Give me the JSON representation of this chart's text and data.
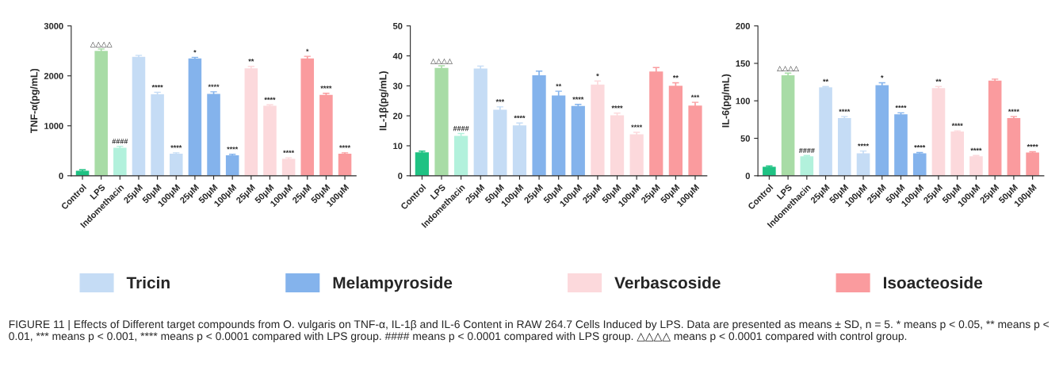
{
  "chart_data": [
    {
      "type": "bar",
      "ylabel": "TNF-α(pg/mL)",
      "categories": [
        "Control",
        "LPS",
        "Indomethacin",
        "25μM",
        "50μM",
        "100μM",
        "25μM",
        "50μM",
        "100μM",
        "25μM",
        "50μM",
        "100μM",
        "25μM",
        "50μM",
        "100μM"
      ],
      "ylim": [
        0,
        3000
      ],
      "yticks": [
        0,
        1000,
        2000,
        3000
      ],
      "legend": "bottom",
      "annotations": [
        "FIGURE 11 | Effects of Different target compounds from O. vulgaris on TNF-α, IL-1β and IL-6 Content in RAW 264.7 Cells Induced by LPS. Data are presented as means ± SD, n = 5. * means p < 0.05, ** means p < 0.01, *** means p < 0.001, **** means p < 0.0001 compared with LPS group. #### means p < 0.0001 compared with LPS group. △△△△ means p < 0.0001 compared with control group."
      ],
      "series": [
        {
          "colors": [
            "#1fc283",
            "#a8dca6",
            "#b2f1dc",
            null,
            null,
            null,
            null,
            null,
            null,
            null,
            null,
            null,
            null,
            null,
            null
          ],
          "values": [
            100,
            2500,
            560,
            null,
            null,
            null,
            null,
            null,
            null,
            null,
            null,
            null,
            null,
            null,
            null
          ],
          "errors": [
            20,
            40,
            30,
            null,
            null,
            null,
            null,
            null,
            null,
            null,
            null,
            null,
            null,
            null,
            null
          ],
          "value_labels": [
            null,
            "△△△△",
            "####",
            null,
            null,
            null,
            null,
            null,
            null,
            null,
            null,
            null,
            null,
            null,
            null
          ]
        },
        {
          "name": "Tricin",
          "color": "#c5dcf5",
          "values": [
            null,
            null,
            null,
            2380,
            1630,
            440,
            null,
            null,
            null,
            null,
            null,
            null,
            null,
            null,
            null
          ],
          "errors": [
            null,
            null,
            null,
            30,
            40,
            20,
            null,
            null,
            null,
            null,
            null,
            null,
            null,
            null,
            null
          ],
          "value_labels": [
            null,
            null,
            null,
            null,
            "****",
            "****",
            null,
            null,
            null,
            null,
            null,
            null,
            null,
            null,
            null
          ]
        },
        {
          "name": "Melampyroside",
          "color": "#84b3ec",
          "values": [
            null,
            null,
            null,
            null,
            null,
            null,
            2350,
            1640,
            410,
            null,
            null,
            null,
            null,
            null,
            null
          ],
          "errors": [
            null,
            null,
            null,
            null,
            null,
            null,
            20,
            40,
            20,
            null,
            null,
            null,
            null,
            null,
            null
          ],
          "value_labels": [
            null,
            null,
            null,
            null,
            null,
            null,
            "*",
            "****",
            "****",
            null,
            null,
            null,
            null,
            null,
            null
          ]
        },
        {
          "name": "Verbascoside",
          "color": "#fcd9dc",
          "values": [
            null,
            null,
            null,
            null,
            null,
            null,
            null,
            null,
            null,
            2150,
            1400,
            340,
            null,
            null,
            null
          ],
          "errors": [
            null,
            null,
            null,
            null,
            null,
            null,
            null,
            null,
            null,
            40,
            20,
            20,
            null,
            null,
            null
          ],
          "value_labels": [
            null,
            null,
            null,
            null,
            null,
            null,
            null,
            null,
            null,
            "**",
            "****",
            "****",
            null,
            null,
            null
          ]
        },
        {
          "name": "Isoacteoside",
          "color": "#fa9b9e",
          "values": [
            null,
            null,
            null,
            null,
            null,
            null,
            null,
            null,
            null,
            null,
            null,
            null,
            2350,
            1620,
            440
          ],
          "errors": [
            null,
            null,
            null,
            null,
            null,
            null,
            null,
            null,
            null,
            null,
            null,
            null,
            40,
            30,
            20
          ],
          "value_labels": [
            null,
            null,
            null,
            null,
            null,
            null,
            null,
            null,
            null,
            null,
            null,
            null,
            "*",
            "****",
            "****"
          ]
        }
      ]
    },
    {
      "type": "bar",
      "ylabel": "IL-1β(pg/mL)",
      "categories": [
        "Control",
        "LPS",
        "Indomethacin",
        "25μM",
        "50μM",
        "100μM",
        "25μM",
        "50μM",
        "100μM",
        "25μM",
        "50μM",
        "100μM",
        "25μM",
        "50μM",
        "100μM"
      ],
      "ylim": [
        0,
        50
      ],
      "yticks": [
        0,
        10,
        20,
        30,
        40,
        50
      ],
      "series": [
        {
          "colors": [
            "#1fc283",
            "#a8dca6",
            "#b2f1dc",
            null,
            null,
            null,
            null,
            null,
            null,
            null,
            null,
            null,
            null,
            null,
            null
          ],
          "values": [
            7.8,
            36,
            13.3,
            null,
            null,
            null,
            null,
            null,
            null,
            null,
            null,
            null,
            null,
            null,
            null
          ],
          "errors": [
            0.4,
            0.7,
            0.8,
            null,
            null,
            null,
            null,
            null,
            null,
            null,
            null,
            null,
            null,
            null,
            null
          ],
          "value_labels": [
            null,
            "△△△△",
            "####",
            null,
            null,
            null,
            null,
            null,
            null,
            null,
            null,
            null,
            null,
            null,
            null
          ]
        },
        {
          "color": "#c5dcf5",
          "values": [
            null,
            null,
            null,
            35.8,
            22,
            16.8,
            null,
            null,
            null,
            null,
            null,
            null,
            null,
            null,
            null
          ],
          "errors": [
            null,
            null,
            null,
            0.8,
            1,
            0.8,
            null,
            null,
            null,
            null,
            null,
            null,
            null,
            null,
            null
          ],
          "value_labels": [
            null,
            null,
            null,
            null,
            "***",
            "****",
            null,
            null,
            null,
            null,
            null,
            null,
            null,
            null,
            null
          ]
        },
        {
          "color": "#84b3ec",
          "values": [
            null,
            null,
            null,
            null,
            null,
            null,
            33.5,
            26.8,
            23.3,
            null,
            null,
            null,
            null,
            null,
            null
          ],
          "errors": [
            null,
            null,
            null,
            null,
            null,
            null,
            1.4,
            1.4,
            0.5,
            null,
            null,
            null,
            null,
            null,
            null
          ],
          "value_labels": [
            null,
            null,
            null,
            null,
            null,
            null,
            null,
            "**",
            "****",
            null,
            null,
            null,
            null,
            null,
            null
          ]
        },
        {
          "color": "#fcd9dc",
          "values": [
            null,
            null,
            null,
            null,
            null,
            null,
            null,
            null,
            null,
            30.4,
            20.2,
            13.8,
            null,
            null,
            null
          ],
          "errors": [
            null,
            null,
            null,
            null,
            null,
            null,
            null,
            null,
            null,
            1.2,
            0.7,
            0.7,
            null,
            null,
            null
          ],
          "value_labels": [
            null,
            null,
            null,
            null,
            null,
            null,
            null,
            null,
            null,
            "*",
            "****",
            "****",
            null,
            null,
            null
          ]
        },
        {
          "color": "#fa9b9e",
          "values": [
            null,
            null,
            null,
            null,
            null,
            null,
            null,
            null,
            null,
            null,
            null,
            null,
            34.8,
            30,
            23.4
          ],
          "errors": [
            null,
            null,
            null,
            null,
            null,
            null,
            null,
            null,
            null,
            null,
            null,
            null,
            1.3,
            1,
            1.1
          ],
          "value_labels": [
            null,
            null,
            null,
            null,
            null,
            null,
            null,
            null,
            null,
            null,
            null,
            null,
            null,
            "**",
            "***"
          ]
        }
      ]
    },
    {
      "type": "bar",
      "ylabel": "IL-6(pg/mL)",
      "categories": [
        "Control",
        "LPS",
        "Indomethacin",
        "25μM",
        "50μM",
        "100μM",
        "25μM",
        "50μM",
        "100μM",
        "25μM",
        "50μM",
        "100μM",
        "25μM",
        "50μM",
        "100μM"
      ],
      "ylim": [
        0,
        200
      ],
      "yticks": [
        0,
        50,
        100,
        150,
        200
      ],
      "series": [
        {
          "colors": [
            "#1fc283",
            "#a8dca6",
            "#b2f1dc",
            null,
            null,
            null,
            null,
            null,
            null,
            null,
            null,
            null,
            null,
            null,
            null
          ],
          "values": [
            12,
            134,
            26,
            null,
            null,
            null,
            null,
            null,
            null,
            null,
            null,
            null,
            null,
            null,
            null
          ],
          "errors": [
            1,
            3,
            1,
            null,
            null,
            null,
            null,
            null,
            null,
            null,
            null,
            null,
            null,
            null,
            null
          ],
          "value_labels": [
            null,
            "△△△△",
            "####",
            null,
            null,
            null,
            null,
            null,
            null,
            null,
            null,
            null,
            null,
            null,
            null
          ]
        },
        {
          "color": "#c5dcf5",
          "values": [
            null,
            null,
            null,
            118,
            77,
            30,
            null,
            null,
            null,
            null,
            null,
            null,
            null,
            null,
            null
          ],
          "errors": [
            null,
            null,
            null,
            1,
            2,
            3,
            null,
            null,
            null,
            null,
            null,
            null,
            null,
            null,
            null
          ],
          "value_labels": [
            null,
            null,
            null,
            "**",
            "****",
            "****",
            null,
            null,
            null,
            null,
            null,
            null,
            null,
            null,
            null
          ]
        },
        {
          "color": "#84b3ec",
          "values": [
            null,
            null,
            null,
            null,
            null,
            null,
            121,
            82,
            30,
            null,
            null,
            null,
            null,
            null,
            null
          ],
          "errors": [
            null,
            null,
            null,
            null,
            null,
            null,
            3,
            2,
            1,
            null,
            null,
            null,
            null,
            null,
            null
          ],
          "value_labels": [
            null,
            null,
            null,
            null,
            null,
            null,
            "*",
            "****",
            "****",
            null,
            null,
            null,
            null,
            null,
            null
          ]
        },
        {
          "color": "#fcd9dc",
          "values": [
            null,
            null,
            null,
            null,
            null,
            null,
            null,
            null,
            null,
            117,
            59,
            26,
            null,
            null,
            null
          ],
          "errors": [
            null,
            null,
            null,
            null,
            null,
            null,
            null,
            null,
            null,
            2,
            1,
            1,
            null,
            null,
            null
          ],
          "value_labels": [
            null,
            null,
            null,
            null,
            null,
            null,
            null,
            null,
            null,
            "**",
            "****",
            "****",
            null,
            null,
            null
          ]
        },
        {
          "color": "#fa9b9e",
          "values": [
            null,
            null,
            null,
            null,
            null,
            null,
            null,
            null,
            null,
            null,
            null,
            null,
            127,
            77,
            31
          ],
          "errors": [
            null,
            null,
            null,
            null,
            null,
            null,
            null,
            null,
            null,
            null,
            null,
            null,
            2,
            2,
            1
          ],
          "value_labels": [
            null,
            null,
            null,
            null,
            null,
            null,
            null,
            null,
            null,
            null,
            null,
            null,
            null,
            "****",
            "****"
          ]
        }
      ]
    }
  ]
}
